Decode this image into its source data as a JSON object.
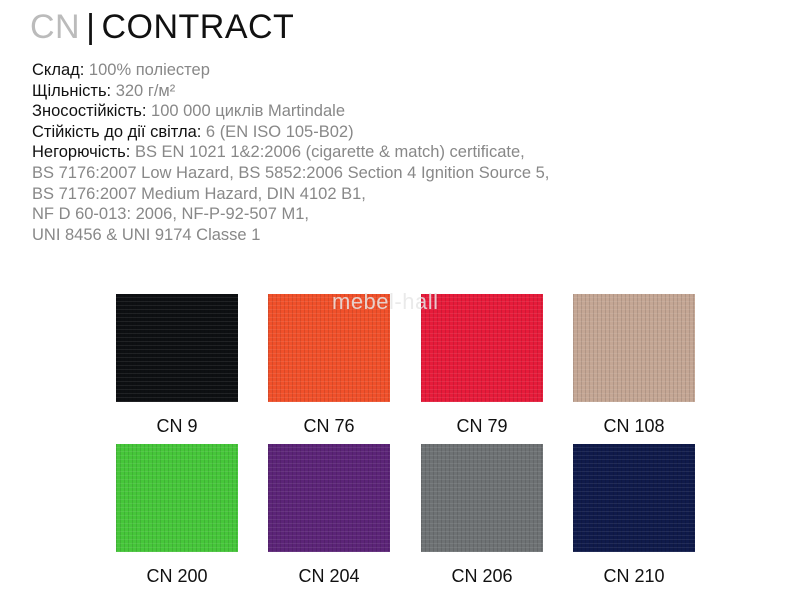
{
  "header": {
    "code": "CN",
    "separator": "|",
    "name": "CONTRACT"
  },
  "specs": [
    {
      "label": "Склад:",
      "value": " 100% поліестер"
    },
    {
      "label": "Щільність:",
      "value": " 320 г/м²"
    },
    {
      "label": "Зносостійкість:",
      "value": " 100 000 циклів Martindale"
    },
    {
      "label": "Стійкість до дії світла:",
      "value": " 6 (EN ISO 105-B02)"
    },
    {
      "label": "Негорючість:",
      "value": " BS EN 1021 1&2:2006 (cigarette & match) certificate,"
    },
    {
      "label": "",
      "value": "BS 7176:2007 Low Hazard, BS 5852:2006 Section 4 Ignition Source 5,"
    },
    {
      "label": "",
      "value": "BS 7176:2007 Medium Hazard, DIN 4102 B1,"
    },
    {
      "label": "",
      "value": "NF D 60-013: 2006, NF-P-92-507 M1,"
    },
    {
      "label": "",
      "value": "UNI 8456 & UNI 9174 Classe 1"
    }
  ],
  "watermark": "mebel-hall",
  "swatches": [
    {
      "name": "CN 9",
      "color": "#0d0f12"
    },
    {
      "name": "CN 76",
      "color": "#f0502a"
    },
    {
      "name": "CN 79",
      "color": "#e61b3a"
    },
    {
      "name": "CN 108",
      "color": "#c4a694"
    },
    {
      "name": "CN 200",
      "color": "#46c63a"
    },
    {
      "name": "CN 204",
      "color": "#5b2477"
    },
    {
      "name": "CN 206",
      "color": "#6e7274"
    },
    {
      "name": "CN 210",
      "color": "#0f1a4a"
    }
  ]
}
